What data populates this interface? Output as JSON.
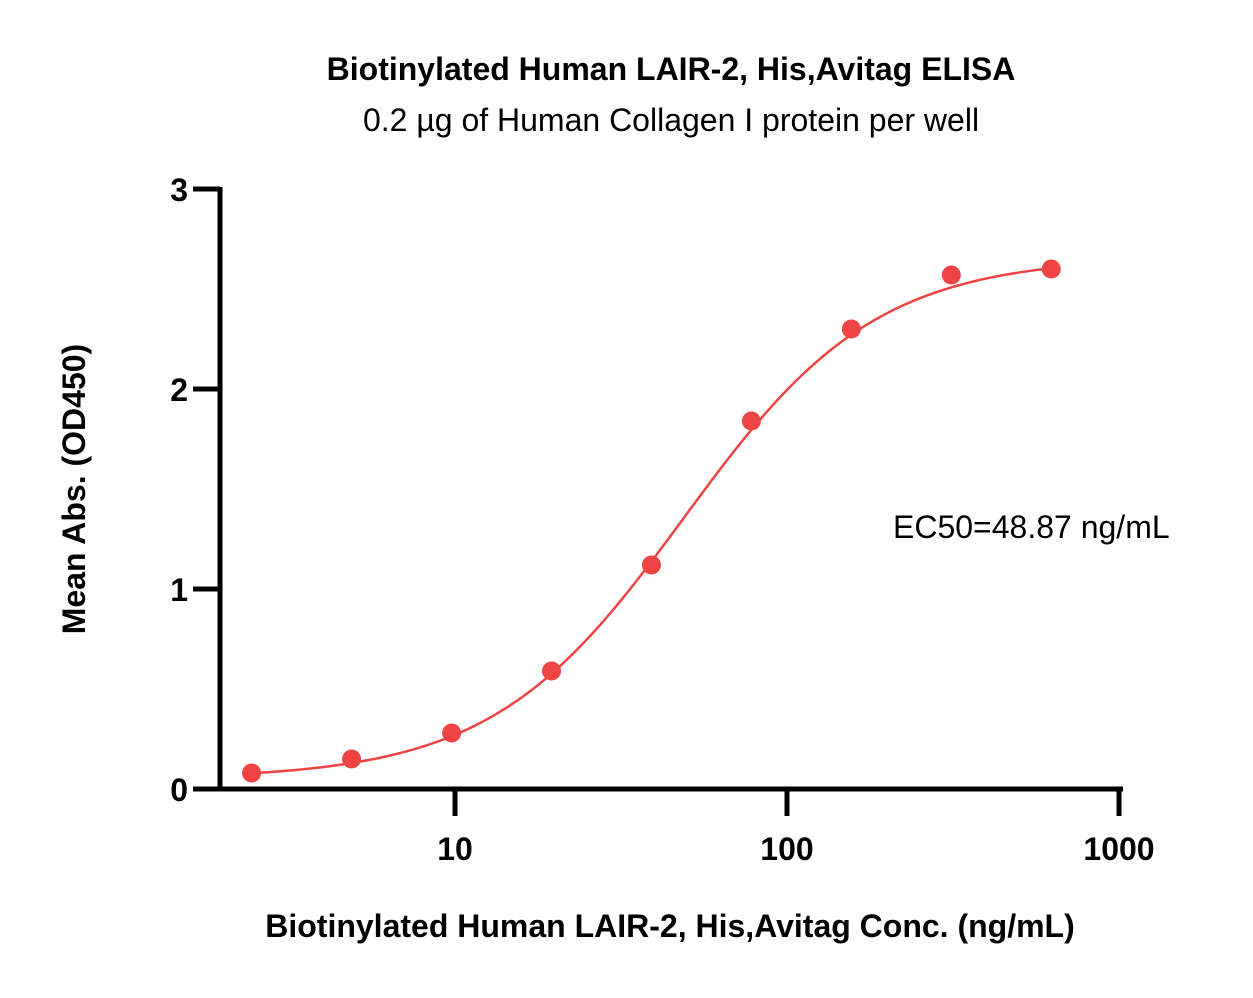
{
  "chart_data": {
    "type": "scatter",
    "title": "Biotinylated Human LAIR-2, His,Avitag ELISA",
    "subtitle": "0.2 µg of Human Collagen I protein per well",
    "xlabel": "Biotinylated Human LAIR-2, His,Avitag  Conc. (ng/mL)",
    "ylabel": "Mean Abs. (OD450)",
    "x_scale": "log",
    "xlim": [
      1.6,
      1000
    ],
    "ylim": [
      0,
      3
    ],
    "x_ticks": [
      10,
      100,
      1000
    ],
    "x_tick_labels": [
      "10",
      "100",
      "1000"
    ],
    "y_ticks": [
      0,
      1,
      2,
      3
    ],
    "y_tick_labels": [
      "0",
      "1",
      "2",
      "3"
    ],
    "grid": false,
    "series": [
      {
        "color": "#ee4444",
        "x": [
          2.44,
          4.88,
          9.77,
          19.53,
          39.06,
          78.13,
          156.25,
          312.5,
          625
        ],
        "y": [
          0.08,
          0.15,
          0.28,
          0.59,
          1.12,
          1.84,
          2.3,
          2.57,
          2.6
        ]
      }
    ],
    "fit": {
      "type": "4PL",
      "bottom": 0.05,
      "top": 2.66,
      "ec50": 48.87,
      "hill": 1.5
    },
    "annotations": [
      {
        "text": "EC50=48.87 ng/mL"
      }
    ]
  }
}
